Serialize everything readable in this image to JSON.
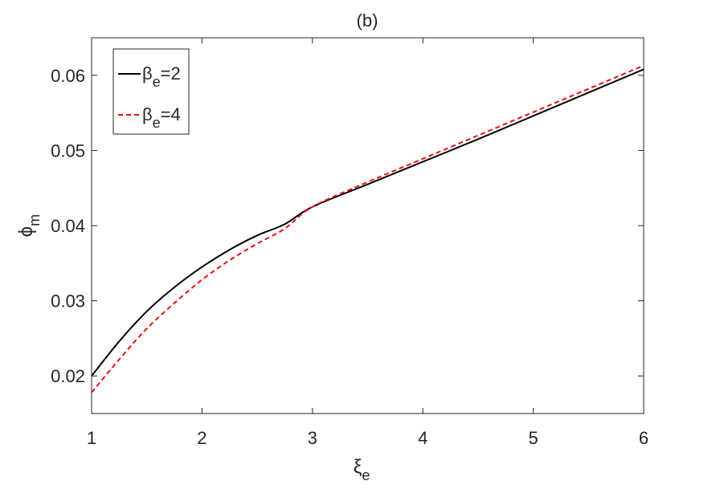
{
  "chart_data": {
    "type": "line",
    "title": "(b)",
    "xlabel": {
      "symbol": "ξ",
      "subscript": "e"
    },
    "ylabel": {
      "symbol": "ϕ",
      "subscript": "m"
    },
    "xlim": [
      1,
      6
    ],
    "ylim": [
      0.015,
      0.065
    ],
    "xticks": [
      1,
      2,
      3,
      4,
      5,
      6
    ],
    "xtick_labels": [
      "1",
      "2",
      "3",
      "4",
      "5",
      "6"
    ],
    "yticks": [
      0.02,
      0.03,
      0.04,
      0.05,
      0.06
    ],
    "ytick_labels": [
      "0.02",
      "0.03",
      "0.04",
      "0.05",
      "0.06"
    ],
    "grid": false,
    "legend_position": "top-left",
    "series": [
      {
        "name": "β_e=2",
        "legend": {
          "symbol": "β",
          "subscript": "e",
          "suffix": "=2"
        },
        "color": "#000000",
        "dash": "solid",
        "x": [
          1.0,
          1.25,
          1.5,
          1.75,
          2.0,
          2.25,
          2.5,
          2.75,
          3.0,
          3.5,
          4.0,
          4.5,
          5.0,
          5.5,
          6.0
        ],
        "y": [
          0.02,
          0.0246,
          0.0286,
          0.0318,
          0.0345,
          0.0368,
          0.0387,
          0.0402,
          0.0425,
          0.0455,
          0.0485,
          0.0515,
          0.0546,
          0.0577,
          0.0608
        ]
      },
      {
        "name": "β_e=4",
        "legend": {
          "symbol": "β",
          "subscript": "e",
          "suffix": "=4"
        },
        "color": "#e8110f",
        "dash": "dashed",
        "x": [
          1.0,
          1.25,
          1.5,
          1.75,
          2.0,
          2.25,
          2.5,
          2.75,
          3.0,
          3.5,
          4.0,
          4.5,
          5.0,
          5.5,
          6.0
        ],
        "y": [
          0.0178,
          0.0222,
          0.0263,
          0.0297,
          0.0328,
          0.0354,
          0.0376,
          0.0396,
          0.0425,
          0.0458,
          0.0489,
          0.052,
          0.0551,
          0.0582,
          0.0613
        ]
      }
    ]
  }
}
